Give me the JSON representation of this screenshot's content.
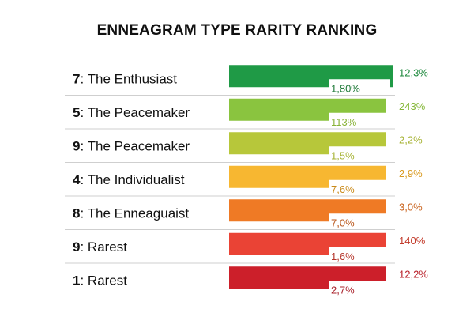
{
  "chart_data": {
    "type": "bar",
    "title": "ENNEAGRAM TYPE RARITY RANKING",
    "xlabel": "",
    "ylabel": "",
    "grid": false,
    "categories": [
      {
        "num": "7",
        "text": ": The Enthusiast"
      },
      {
        "num": "5",
        "text": ": The Peacemaker"
      },
      {
        "num": "9",
        "text": ": The Peacemaker"
      },
      {
        "num": "4",
        "text": ": The Individualist"
      },
      {
        "num": "8",
        "text": ": The Enneaguaist"
      },
      {
        "num": "9",
        "text": ": Rarest"
      },
      {
        "num": "1",
        "text": ": Rarest"
      }
    ],
    "bars": [
      {
        "fill": 1.0,
        "color": "#1f9a46",
        "label_outer": "12,3%",
        "label_inner": "1,80%",
        "outer_color": "#1f8a3e",
        "inner_color": "#1f7a38"
      },
      {
        "fill": 0.96,
        "color": "#8ac43f",
        "label_outer": "243%",
        "label_inner": "113%",
        "outer_color": "#86b83a",
        "inner_color": "#8ab33a"
      },
      {
        "fill": 0.96,
        "color": "#b7c73a",
        "label_outer": "2,2%",
        "label_inner": "1,5%",
        "outer_color": "#a7b335",
        "inner_color": "#a7b335"
      },
      {
        "fill": 0.96,
        "color": "#f7b731",
        "label_outer": "2,9%",
        "label_inner": "7,6%",
        "outer_color": "#d99a1f",
        "inner_color": "#c98a1a"
      },
      {
        "fill": 0.96,
        "color": "#ef7a25",
        "label_outer": "3,0%",
        "label_inner": "7,0%",
        "outer_color": "#c9621c",
        "inner_color": "#b9561a"
      },
      {
        "fill": 0.96,
        "color": "#ea4335",
        "label_outer": "140%",
        "label_inner": "1,6%",
        "outer_color": "#c23a2a",
        "inner_color": "#b5352a"
      },
      {
        "fill": 0.96,
        "color": "#cc1f2a",
        "label_outer": "12,2%",
        "label_inner": "2,7%",
        "outer_color": "#b81c26",
        "inner_color": "#a8202a"
      }
    ]
  }
}
